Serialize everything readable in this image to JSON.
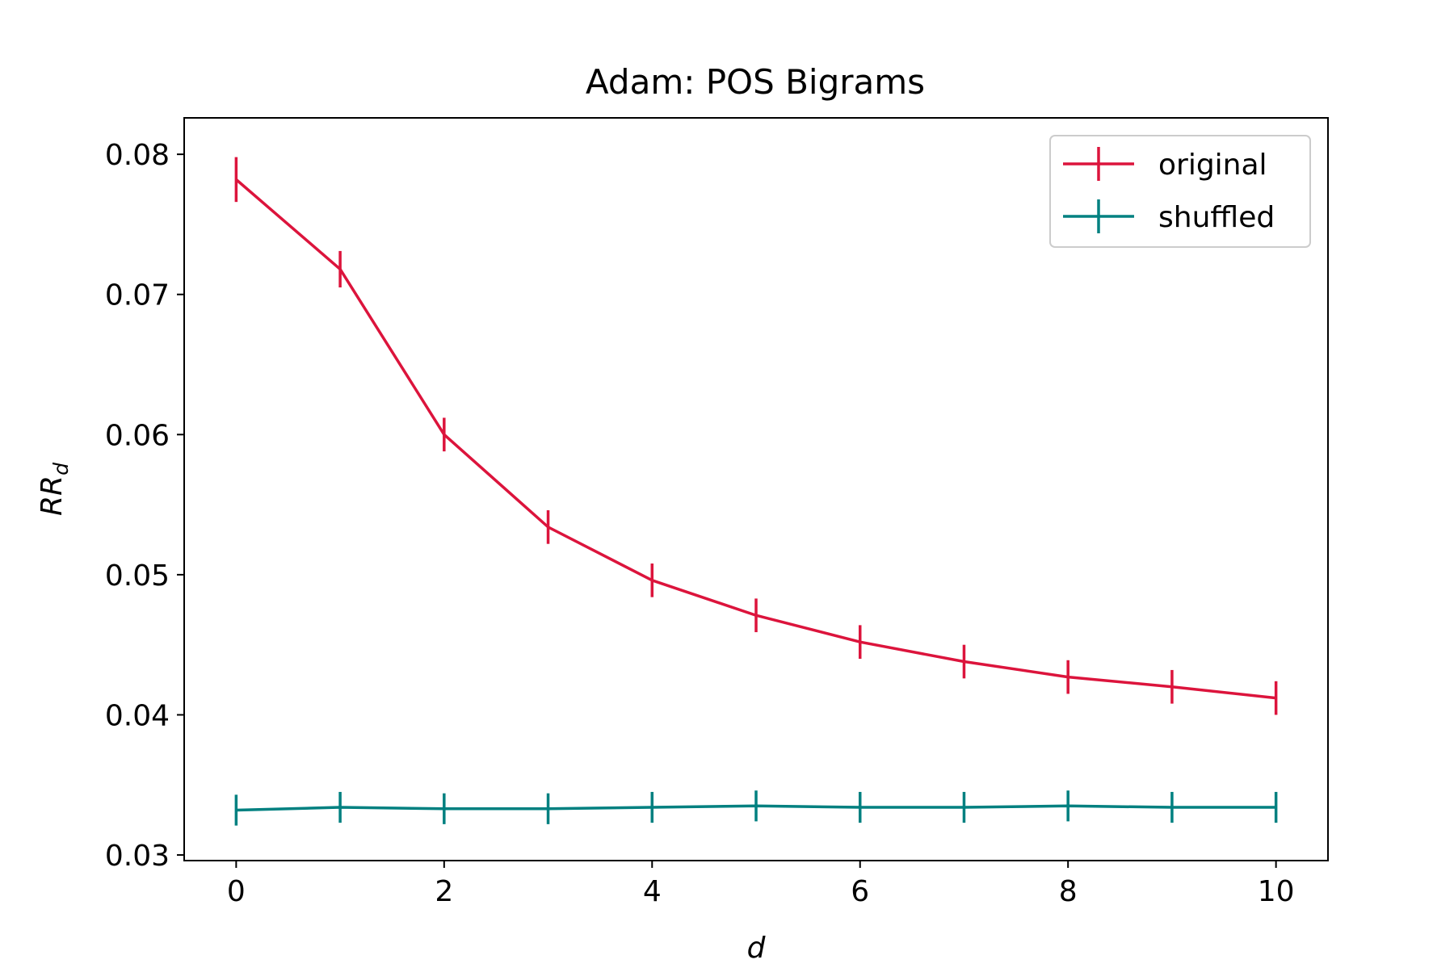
{
  "chart_data": {
    "type": "line",
    "title": "Adam: POS Bigrams",
    "xlabel": "d",
    "ylabel_main": "RR",
    "ylabel_sub": "d",
    "xlim": [
      -0.5,
      10.5
    ],
    "ylim": [
      0.0296,
      0.0826
    ],
    "x_ticks": [
      0,
      2,
      4,
      6,
      8,
      10
    ],
    "x_tick_labels": [
      "0",
      "2",
      "4",
      "6",
      "8",
      "10"
    ],
    "y_ticks": [
      0.03,
      0.04,
      0.05,
      0.06,
      0.07,
      0.08
    ],
    "y_tick_labels": [
      "0.03",
      "0.04",
      "0.05",
      "0.06",
      "0.07",
      "0.08"
    ],
    "grid": false,
    "legend_position": "top-right",
    "x": [
      0,
      1,
      2,
      3,
      4,
      5,
      6,
      7,
      8,
      9,
      10
    ],
    "series": [
      {
        "name": "original",
        "color": "#dc143c",
        "values": [
          0.0782,
          0.0718,
          0.06,
          0.0534,
          0.0496,
          0.0471,
          0.0452,
          0.0438,
          0.0427,
          0.042,
          0.0412
        ],
        "errors": [
          0.0016,
          0.0013,
          0.0012,
          0.0012,
          0.0012,
          0.0012,
          0.0012,
          0.0012,
          0.0012,
          0.0012,
          0.0012
        ]
      },
      {
        "name": "shuffled",
        "color": "#008080",
        "values": [
          0.0332,
          0.0334,
          0.0333,
          0.0333,
          0.0334,
          0.0335,
          0.0334,
          0.0334,
          0.0335,
          0.0334,
          0.0334
        ],
        "errors": [
          0.0011,
          0.0011,
          0.0011,
          0.0011,
          0.0011,
          0.0011,
          0.0011,
          0.0011,
          0.0011,
          0.0011,
          0.0011
        ]
      }
    ]
  }
}
